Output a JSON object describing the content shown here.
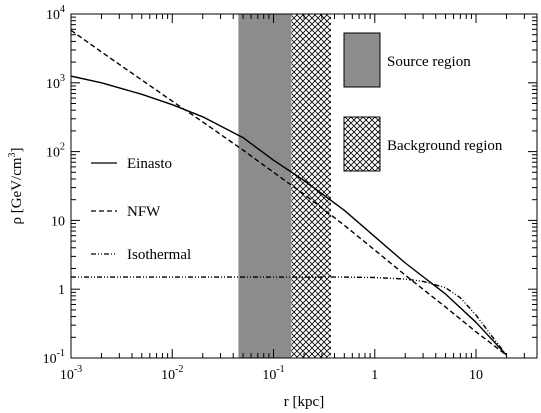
{
  "chart_data": {
    "type": "line",
    "xlabel": "r [kpc]",
    "ylabel": "ρ [GeV/cm³]",
    "ylabel_parts": {
      "base": "ρ [GeV/cm",
      "sup": "3",
      "end": "]"
    },
    "x_scale": "log",
    "y_scale": "log",
    "xlim": [
      0.001,
      40
    ],
    "ylim": [
      0.1,
      10000
    ],
    "x_ticks": [
      {
        "value": 0.001,
        "base": "10",
        "exp": "-3"
      },
      {
        "value": 0.01,
        "base": "10",
        "exp": "-2"
      },
      {
        "value": 0.1,
        "base": "10",
        "exp": "-1"
      },
      {
        "value": 1,
        "base": "1",
        "exp": ""
      },
      {
        "value": 10,
        "base": "10",
        "exp": ""
      }
    ],
    "y_ticks": [
      {
        "value": 0.1,
        "base": "10",
        "exp": "-1"
      },
      {
        "value": 1,
        "base": "1",
        "exp": ""
      },
      {
        "value": 10,
        "base": "10",
        "exp": ""
      },
      {
        "value": 100,
        "base": "10",
        "exp": "2"
      },
      {
        "value": 1000,
        "base": "10",
        "exp": "3"
      },
      {
        "value": 10000,
        "base": "10",
        "exp": "4"
      }
    ],
    "regions": [
      {
        "name": "Source region",
        "x_range": [
          0.045,
          0.15
        ],
        "style": "solid-gray",
        "color": "#8c8c8c"
      },
      {
        "name": "Background region",
        "x_range": [
          0.15,
          0.37
        ],
        "style": "crosshatch",
        "color": "#000000"
      }
    ],
    "series": [
      {
        "name": "Einasto",
        "dash": "solid",
        "x": [
          0.001,
          0.002,
          0.005,
          0.01,
          0.02,
          0.05,
          0.1,
          0.2,
          0.5,
          1,
          2,
          5,
          10,
          20
        ],
        "y": [
          1250,
          1000,
          680,
          480,
          320,
          160,
          75,
          38,
          14,
          5.8,
          2.4,
          0.85,
          0.33,
          0.11
        ]
      },
      {
        "name": "NFW",
        "dash": "dashed",
        "x": [
          0.001,
          0.002,
          0.005,
          0.01,
          0.02,
          0.05,
          0.1,
          0.2,
          0.5,
          1,
          2,
          5,
          10,
          20
        ],
        "y": [
          5800,
          2800,
          1100,
          540,
          270,
          105,
          50,
          24,
          8.5,
          3.7,
          1.6,
          0.55,
          0.24,
          0.11
        ]
      },
      {
        "name": "Isothermal",
        "dash": "dash-dot-dot",
        "x": [
          0.001,
          0.01,
          0.1,
          0.5,
          1,
          2,
          3,
          5,
          7,
          10,
          15,
          20
        ],
        "y": [
          1.5,
          1.5,
          1.5,
          1.5,
          1.48,
          1.4,
          1.3,
          1.05,
          0.75,
          0.42,
          0.19,
          0.11
        ]
      }
    ],
    "grid": false,
    "legend_placement": "left-center"
  }
}
